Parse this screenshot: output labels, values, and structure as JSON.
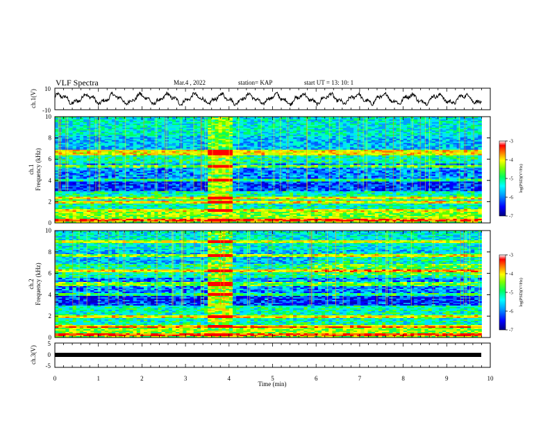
{
  "header": {
    "title": "VLF Spectra",
    "date": "Mar.4 , 2022",
    "station": "station= KAP",
    "start": "start UT = 13: 10: 1"
  },
  "colorbar": {
    "label": "log(PSD)(V²/Hz)",
    "ticks": [
      "-3",
      "-4",
      "-5",
      "-6",
      "-7"
    ],
    "colors": [
      "#000080",
      "#0000ff",
      "#00a0ff",
      "#00ffff",
      "#00ff60",
      "#80ff00",
      "#ffff00",
      "#ff8000",
      "#ff0000",
      "#ffffff"
    ]
  },
  "chart_data": [
    {
      "type": "line",
      "ylabel": "ch.1(V)",
      "ylim": [
        -10,
        10
      ],
      "y_ticks": [
        "10",
        "-10"
      ],
      "description_values": "waveform oscillating roughly between -6 and +6 V over 0 to 9.8 min"
    },
    {
      "type": "heatmap",
      "ylabel_channel": "ch.1",
      "ylabel": "Frequency (kHz)",
      "ylim": [
        0,
        10
      ],
      "y_ticks": [
        "10",
        "8",
        "6",
        "4",
        "2",
        "0"
      ],
      "zlim": [
        -7,
        -3
      ],
      "time_range_min": [
        0,
        9.8
      ],
      "bright_block_min": [
        3.5,
        4.1
      ],
      "bands_khz": [
        0.3,
        1.2,
        2.0,
        2.3,
        4.0,
        5.3,
        6.5,
        6.8
      ]
    },
    {
      "type": "heatmap",
      "ylabel_channel": "ch.2",
      "ylabel": "Frequency (kHz)",
      "ylim": [
        0,
        10
      ],
      "y_ticks": [
        "10",
        "8",
        "6",
        "4",
        "2",
        "0"
      ],
      "zlim": [
        -7,
        -3
      ],
      "time_range_min": [
        0,
        9.8
      ],
      "bright_block_min": [
        3.5,
        4.1
      ],
      "bands_khz": [
        0.3,
        1.0,
        2.0,
        4.0,
        5.0,
        6.2,
        7.7,
        9.0
      ]
    },
    {
      "type": "line",
      "ylabel": "ch.3(V)",
      "ylim": [
        -5,
        5
      ],
      "y_ticks": [
        "5",
        "0",
        "-5"
      ],
      "constant_value": 0
    }
  ],
  "xaxis": {
    "label": "Time (min)",
    "xlim": [
      0,
      10
    ],
    "ticks": [
      "0",
      "1",
      "2",
      "3",
      "4",
      "5",
      "6",
      "7",
      "8",
      "9",
      "10"
    ]
  }
}
